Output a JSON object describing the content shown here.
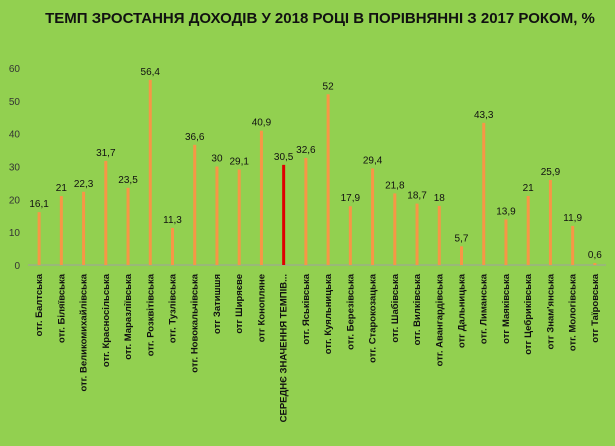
{
  "chart_data": {
    "type": "bar",
    "title": "ТЕМП ЗРОСТАННЯ ДОХОДІВ У 2018  РОЦІ В ПОРІВНЯННІ З 2017 РОКОМ, %",
    "xlabel": "",
    "ylabel": "",
    "ylim": [
      0,
      60
    ],
    "yticks": [
      "0",
      "10",
      "20",
      "30",
      "40",
      "50",
      "60"
    ],
    "categories": [
      "отг. Балтська",
      "отг. Біляївська",
      "отг. Великомихайлівська",
      "отг. Красносільська",
      "отг. Маразліївська",
      "отг. Розквітівська",
      "отг. Тузлівська",
      "отг. Новокальчівська",
      "отг Затишшя",
      "отг Ширяєве",
      "отг Конопляне",
      "СЕРЕДНЄ ЗНАЧЕННЯ  ТЕМПІВ...",
      "отг. Яськівська",
      "отг. Куяльницька",
      "отг. Березівська",
      "отг. Старокозацька",
      "отг. Шабівська",
      "отг. Вилківська",
      "отг. Авангардівська",
      "отг Дальницька",
      "отг. Лиманська",
      "отг Маяківська",
      "отг Цебриківська",
      "отг Знам'янська",
      "отг. Мологівська",
      "отг Таїровська"
    ],
    "values": [
      16.1,
      21,
      22.3,
      31.7,
      23.5,
      56.4,
      11.3,
      36.6,
      30,
      29.1,
      40.9,
      30.5,
      32.6,
      52,
      17.9,
      29.4,
      21.8,
      18.7,
      18,
      5.7,
      43.3,
      13.9,
      21,
      25.9,
      11.9,
      0.6
    ],
    "data_labels": [
      "16,1",
      "21",
      "22,3",
      "31,7",
      "23,5",
      "56,4",
      "11,3",
      "36,6",
      "30",
      "29,1",
      "40,9",
      "30,5",
      "32,6",
      "52",
      "17,9",
      "29,4",
      "21,8",
      "18,7",
      "18",
      "5,7",
      "43,3",
      "13,9",
      "21",
      "25,9",
      "11,9",
      "0,6"
    ],
    "highlight_index": 11,
    "colors": {
      "bar": "#f79646",
      "highlight": "#e00000",
      "background": "#92d050"
    },
    "grid": false,
    "legend": "none"
  }
}
